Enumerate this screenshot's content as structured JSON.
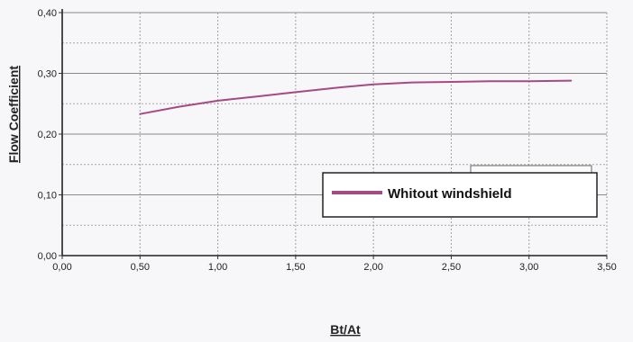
{
  "chart_data": {
    "type": "line",
    "xlabel": "Bt/At",
    "ylabel": "Flow Coefficient",
    "xlim": [
      0,
      3.5
    ],
    "ylim": [
      0,
      0.4
    ],
    "x_ticks": [
      "0,00",
      "0,50",
      "1,00",
      "1,50",
      "2,00",
      "2,50",
      "3,00",
      "3,50"
    ],
    "y_ticks": [
      "0,00",
      "0,10",
      "0,20",
      "0,30",
      "0,40"
    ],
    "grid": true,
    "legend_position": "lower-right",
    "series": [
      {
        "name": "Whitout windshield",
        "color": "#a64a86",
        "x": [
          0.5,
          0.75,
          1.0,
          1.25,
          1.5,
          1.75,
          2.0,
          2.25,
          2.5,
          2.75,
          3.0,
          3.27
        ],
        "y": [
          0.233,
          0.245,
          0.255,
          0.262,
          0.269,
          0.276,
          0.282,
          0.285,
          0.286,
          0.287,
          0.287,
          0.288
        ]
      }
    ]
  }
}
